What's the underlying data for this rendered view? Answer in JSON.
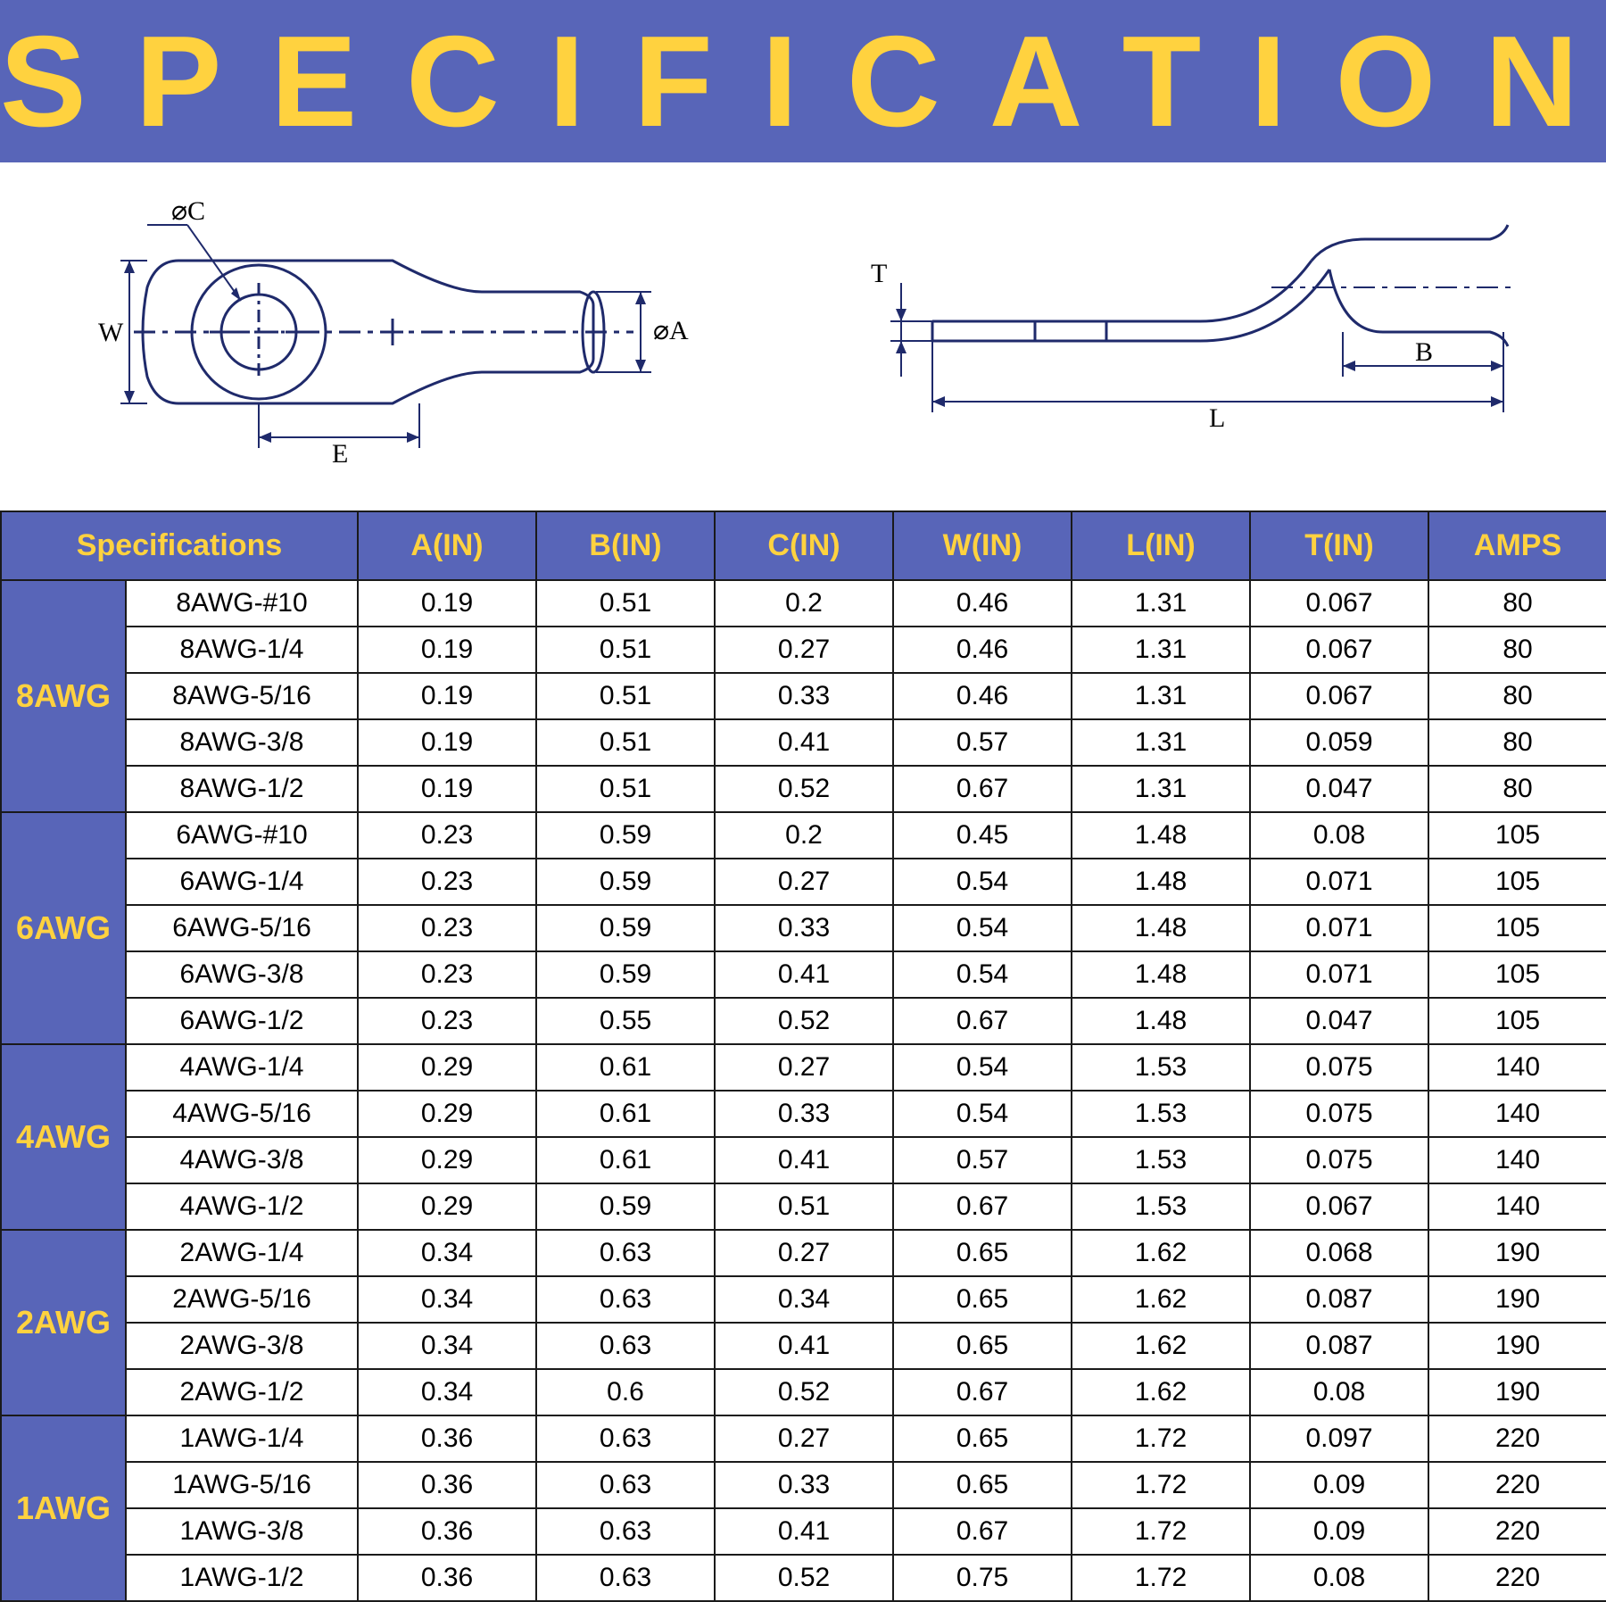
{
  "colors": {
    "banner_bg": "#5865b8",
    "banner_text": "#ffd23f",
    "header_bg": "#5865b8",
    "header_text": "#ffd23f",
    "group_bg": "#5865b8",
    "group_text": "#ffd23f",
    "cell_bg": "#ffffff",
    "cell_text": "#000000",
    "border": "#1a1a1a",
    "diagram_stroke": "#1f2a6b"
  },
  "typography": {
    "banner_fontsize": 145,
    "banner_letter_spacing": 55,
    "banner_weight": 900,
    "header_fontsize": 34,
    "cell_fontsize": 30,
    "group_fontsize": 36
  },
  "title": "SPECIFICATIONS",
  "diagram_labels": {
    "left": {
      "phiC": "⌀C",
      "W": "W",
      "E": "E",
      "phiA": "⌀A"
    },
    "right": {
      "T": "T",
      "L": "L",
      "B": "B"
    }
  },
  "table": {
    "columns": [
      "Specifications",
      "A(IN)",
      "B(IN)",
      "C(IN)",
      "W(IN)",
      "L(IN)",
      "T(IN)",
      "AMPS"
    ],
    "spec_colspan": 2,
    "groups": [
      {
        "gauge": "8AWG",
        "rows": [
          {
            "part": "8AWG-#10",
            "A": "0.19",
            "B": "0.51",
            "C": "0.2",
            "W": "0.46",
            "L": "1.31",
            "T": "0.067",
            "AMPS": "80"
          },
          {
            "part": "8AWG-1/4",
            "A": "0.19",
            "B": "0.51",
            "C": "0.27",
            "W": "0.46",
            "L": "1.31",
            "T": "0.067",
            "AMPS": "80"
          },
          {
            "part": "8AWG-5/16",
            "A": "0.19",
            "B": "0.51",
            "C": "0.33",
            "W": "0.46",
            "L": "1.31",
            "T": "0.067",
            "AMPS": "80"
          },
          {
            "part": "8AWG-3/8",
            "A": "0.19",
            "B": "0.51",
            "C": "0.41",
            "W": "0.57",
            "L": "1.31",
            "T": "0.059",
            "AMPS": "80"
          },
          {
            "part": "8AWG-1/2",
            "A": "0.19",
            "B": "0.51",
            "C": "0.52",
            "W": "0.67",
            "L": "1.31",
            "T": "0.047",
            "AMPS": "80"
          }
        ]
      },
      {
        "gauge": "6AWG",
        "rows": [
          {
            "part": "6AWG-#10",
            "A": "0.23",
            "B": "0.59",
            "C": "0.2",
            "W": "0.45",
            "L": "1.48",
            "T": "0.08",
            "AMPS": "105"
          },
          {
            "part": "6AWG-1/4",
            "A": "0.23",
            "B": "0.59",
            "C": "0.27",
            "W": "0.54",
            "L": "1.48",
            "T": "0.071",
            "AMPS": "105"
          },
          {
            "part": "6AWG-5/16",
            "A": "0.23",
            "B": "0.59",
            "C": "0.33",
            "W": "0.54",
            "L": "1.48",
            "T": "0.071",
            "AMPS": "105"
          },
          {
            "part": "6AWG-3/8",
            "A": "0.23",
            "B": "0.59",
            "C": "0.41",
            "W": "0.54",
            "L": "1.48",
            "T": "0.071",
            "AMPS": "105"
          },
          {
            "part": "6AWG-1/2",
            "A": "0.23",
            "B": "0.55",
            "C": "0.52",
            "W": "0.67",
            "L": "1.48",
            "T": "0.047",
            "AMPS": "105"
          }
        ]
      },
      {
        "gauge": "4AWG",
        "rows": [
          {
            "part": "4AWG-1/4",
            "A": "0.29",
            "B": "0.61",
            "C": "0.27",
            "W": "0.54",
            "L": "1.53",
            "T": "0.075",
            "AMPS": "140"
          },
          {
            "part": "4AWG-5/16",
            "A": "0.29",
            "B": "0.61",
            "C": "0.33",
            "W": "0.54",
            "L": "1.53",
            "T": "0.075",
            "AMPS": "140"
          },
          {
            "part": "4AWG-3/8",
            "A": "0.29",
            "B": "0.61",
            "C": "0.41",
            "W": "0.57",
            "L": "1.53",
            "T": "0.075",
            "AMPS": "140"
          },
          {
            "part": "4AWG-1/2",
            "A": "0.29",
            "B": "0.59",
            "C": "0.51",
            "W": "0.67",
            "L": "1.53",
            "T": "0.067",
            "AMPS": "140"
          }
        ]
      },
      {
        "gauge": "2AWG",
        "rows": [
          {
            "part": "2AWG-1/4",
            "A": "0.34",
            "B": "0.63",
            "C": "0.27",
            "W": "0.65",
            "L": "1.62",
            "T": "0.068",
            "AMPS": "190"
          },
          {
            "part": "2AWG-5/16",
            "A": "0.34",
            "B": "0.63",
            "C": "0.34",
            "W": "0.65",
            "L": "1.62",
            "T": "0.087",
            "AMPS": "190"
          },
          {
            "part": "2AWG-3/8",
            "A": "0.34",
            "B": "0.63",
            "C": "0.41",
            "W": "0.65",
            "L": "1.62",
            "T": "0.087",
            "AMPS": "190"
          },
          {
            "part": "2AWG-1/2",
            "A": "0.34",
            "B": "0.6",
            "C": "0.52",
            "W": "0.67",
            "L": "1.62",
            "T": "0.08",
            "AMPS": "190"
          }
        ]
      },
      {
        "gauge": "1AWG",
        "rows": [
          {
            "part": "1AWG-1/4",
            "A": "0.36",
            "B": "0.63",
            "C": "0.27",
            "W": "0.65",
            "L": "1.72",
            "T": "0.097",
            "AMPS": "220"
          },
          {
            "part": "1AWG-5/16",
            "A": "0.36",
            "B": "0.63",
            "C": "0.33",
            "W": "0.65",
            "L": "1.72",
            "T": "0.09",
            "AMPS": "220"
          },
          {
            "part": "1AWG-3/8",
            "A": "0.36",
            "B": "0.63",
            "C": "0.41",
            "W": "0.67",
            "L": "1.72",
            "T": "0.09",
            "AMPS": "220"
          },
          {
            "part": "1AWG-1/2",
            "A": "0.36",
            "B": "0.63",
            "C": "0.52",
            "W": "0.75",
            "L": "1.72",
            "T": "0.08",
            "AMPS": "220"
          }
        ]
      }
    ]
  }
}
